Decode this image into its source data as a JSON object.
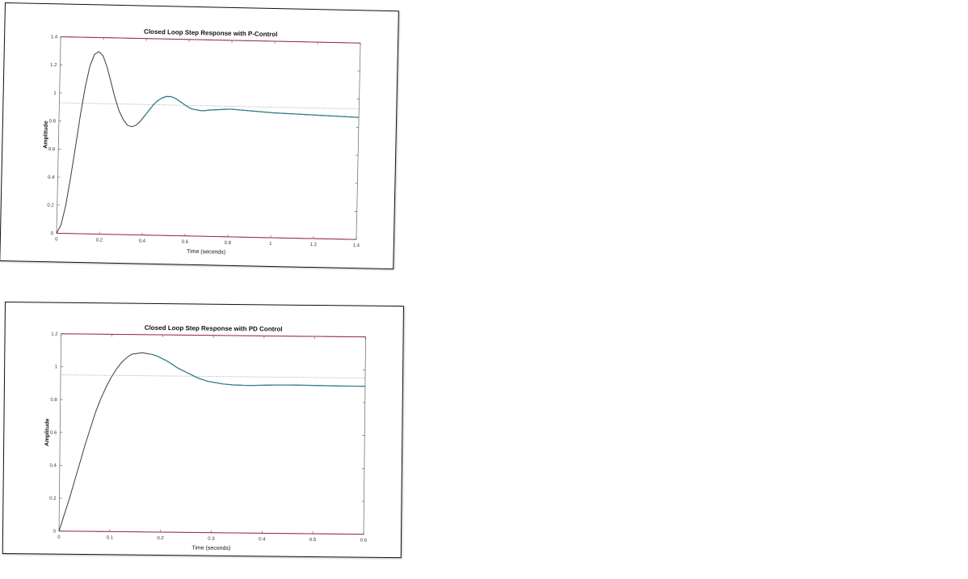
{
  "chart_data": [
    {
      "type": "line",
      "title": "Closed Loop Step Response with P-Control",
      "xlabel": "Time (seconds)",
      "ylabel": "Amplitude",
      "xlim": [
        0,
        1.4
      ],
      "ylim": [
        0,
        1.4
      ],
      "xticks": [
        "0",
        "0.2",
        "0.4",
        "0.6",
        "0.8",
        "1",
        "1.2",
        "1.4"
      ],
      "yticks": [
        "0",
        "0.2",
        "0.4",
        "0.6",
        "0.8",
        "1",
        "1.2",
        "1.4"
      ],
      "grid": false,
      "colors": {
        "axes": "#9a2a4a",
        "response": "#3a3a3a",
        "response_tail": "#2f7f86",
        "final_value": "#b0b0b0"
      },
      "series": [
        {
          "x": [
            0,
            0.02,
            0.04,
            0.06,
            0.08,
            0.1,
            0.12,
            0.14,
            0.16,
            0.18,
            0.2,
            0.22,
            0.24,
            0.26,
            0.28,
            0.3,
            0.32,
            0.34,
            0.36,
            0.38,
            0.4,
            0.42,
            0.44,
            0.46,
            0.48,
            0.5,
            0.52,
            0.54,
            0.56,
            0.58,
            0.6,
            0.62,
            0.64,
            0.66,
            0.68,
            0.7,
            0.75,
            0.8,
            0.85,
            0.9,
            0.95,
            1.0,
            1.1,
            1.2,
            1.3,
            1.4
          ],
          "y": [
            0,
            0.06,
            0.2,
            0.4,
            0.62,
            0.85,
            1.05,
            1.2,
            1.28,
            1.3,
            1.27,
            1.19,
            1.08,
            0.97,
            0.88,
            0.82,
            0.78,
            0.77,
            0.78,
            0.81,
            0.85,
            0.89,
            0.93,
            0.96,
            0.98,
            0.99,
            0.99,
            0.98,
            0.96,
            0.94,
            0.92,
            0.905,
            0.9,
            0.895,
            0.895,
            0.9,
            0.905,
            0.91,
            0.905,
            0.9,
            0.895,
            0.89,
            0.885,
            0.88,
            0.875,
            0.87
          ]
        },
        {
          "x": [
            0,
            1.4
          ],
          "y": [
            0.93,
            0.93
          ]
        }
      ]
    },
    {
      "type": "line",
      "title": "Closed Loop Step Response with PD Control",
      "xlabel": "Time (seconds)",
      "ylabel": "Amplitude",
      "xlim": [
        0,
        0.6
      ],
      "ylim": [
        0,
        1.2
      ],
      "xticks": [
        "0",
        "0.1",
        "0.2",
        "0.3",
        "0.4",
        "0.5",
        "0.6"
      ],
      "yticks": [
        "0",
        "0.2",
        "0.4",
        "0.6",
        "0.8",
        "1",
        "1.2"
      ],
      "grid": false,
      "colors": {
        "axes": "#9a2a4a",
        "response": "#3a3a3a",
        "response_tail": "#2f7f86",
        "final_value": "#b0b0b0"
      },
      "series": [
        {
          "x": [
            0,
            0.01,
            0.02,
            0.03,
            0.04,
            0.05,
            0.06,
            0.07,
            0.08,
            0.09,
            0.1,
            0.11,
            0.12,
            0.13,
            0.14,
            0.15,
            0.16,
            0.17,
            0.18,
            0.19,
            0.2,
            0.21,
            0.22,
            0.23,
            0.24,
            0.25,
            0.26,
            0.27,
            0.28,
            0.29,
            0.3,
            0.32,
            0.34,
            0.36,
            0.38,
            0.4,
            0.42,
            0.45,
            0.5,
            0.55,
            0.6
          ],
          "y": [
            0,
            0.1,
            0.2,
            0.31,
            0.42,
            0.53,
            0.63,
            0.73,
            0.81,
            0.88,
            0.94,
            0.99,
            1.03,
            1.06,
            1.08,
            1.085,
            1.09,
            1.085,
            1.08,
            1.07,
            1.055,
            1.04,
            1.02,
            1.0,
            0.985,
            0.97,
            0.955,
            0.94,
            0.93,
            0.92,
            0.915,
            0.905,
            0.9,
            0.898,
            0.898,
            0.9,
            0.902,
            0.903,
            0.902,
            0.9,
            0.9
          ]
        },
        {
          "x": [
            0,
            0.6
          ],
          "y": [
            0.95,
            0.95
          ]
        }
      ]
    }
  ]
}
